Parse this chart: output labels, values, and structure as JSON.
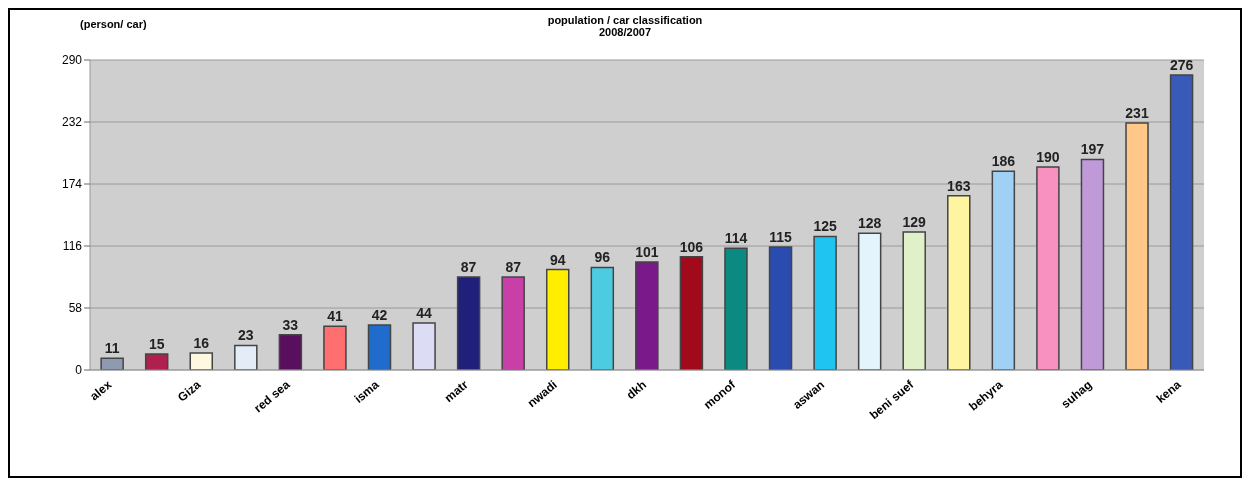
{
  "chart_data": {
    "type": "bar",
    "title": "population / car classification",
    "subtitle": "2008/2007",
    "ylabel": "(person/ car)",
    "categories": [
      "alex",
      null,
      "Giza",
      null,
      "red sea",
      null,
      "isma",
      null,
      "matr",
      null,
      "nwadi",
      null,
      "dkh",
      null,
      "monof",
      null,
      "aswan",
      null,
      "beni suef",
      null,
      "behyra",
      null,
      "suhag",
      null,
      "kena"
    ],
    "values": [
      11,
      15,
      16,
      23,
      33,
      41,
      42,
      44,
      87,
      87,
      94,
      96,
      101,
      106,
      114,
      115,
      125,
      128,
      129,
      163,
      186,
      190,
      197,
      231,
      276
    ],
    "colors": [
      "#8e9ab0",
      "#b0204f",
      "#fff8e0",
      "#e4ecf8",
      "#5a0e5e",
      "#ff6f70",
      "#1f6ccc",
      "#dcdcf4",
      "#20207a",
      "#c83fa8",
      "#ffee00",
      "#4dcbe0",
      "#7a1a8a",
      "#a00a1a",
      "#0a8a80",
      "#2a4cb0",
      "#20c4f0",
      "#e4f4fc",
      "#e0f0c8",
      "#fff4a0",
      "#a0d0f4",
      "#f890c0",
      "#c09ad8",
      "#ffc888",
      "#3a5ab8"
    ],
    "ylim": [
      0,
      290
    ],
    "yticks": [
      0,
      58,
      116,
      174,
      232,
      290
    ],
    "grid": "y",
    "data_labels": true
  }
}
